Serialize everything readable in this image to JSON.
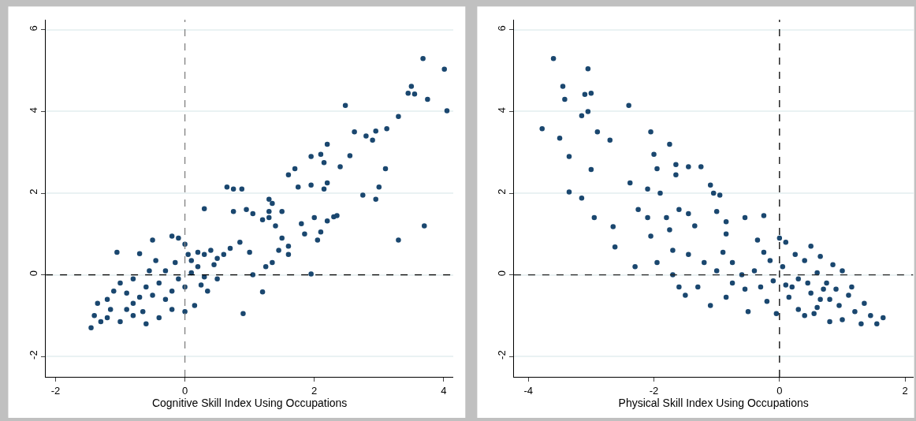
{
  "chart_data": [
    {
      "type": "scatter",
      "xlabel": "Cognitive Skill Index Using Occupations",
      "xlim": [
        -2.15,
        4.15
      ],
      "ylim": [
        -2.5,
        6.25
      ],
      "xticks": [
        -2,
        0,
        2,
        4
      ],
      "yticks": [
        -2,
        0,
        2,
        4,
        6
      ],
      "grid": "y",
      "marker": "circle",
      "ref_lines": [
        {
          "axis": "x",
          "value": 0,
          "line_style": "dashed",
          "color": "#7f7f7f"
        },
        {
          "axis": "y",
          "value": 0,
          "line_style": "dashed",
          "color": "#000000"
        }
      ],
      "series": [
        {
          "color": "#1a476f",
          "x": [
            4.01,
            3.68,
            4.05,
            3.75,
            3.5,
            3.45,
            3.55,
            2.48,
            3.3,
            3.12,
            2.95,
            2.9,
            2.8,
            2.62,
            2.55,
            2.4,
            2.2,
            2.1,
            2.15,
            2.2,
            2.15,
            1.95,
            1.95,
            1.7,
            1.6,
            1.75,
            2.75,
            2.95,
            3.0,
            3.1,
            3.3,
            3.7,
            2.3,
            2.35,
            2.2,
            2.1,
            2.05,
            2.0,
            1.8,
            1.85,
            1.5,
            1.35,
            1.3,
            1.3,
            1.3,
            1.4,
            1.2,
            1.05,
            0.95,
            0.75,
            0.65,
            0.75,
            0.88,
            0.3,
            1.5,
            1.45,
            1.6,
            1.35,
            1.25,
            1.6,
            1.95,
            1.2,
            0.9,
            1.05,
            1.0,
            0.85,
            0.7,
            0.6,
            0.4,
            0.3,
            0.2,
            0.1,
            0.0,
            -0.1,
            -0.2,
            -0.5,
            -1.05,
            -0.7,
            -0.45,
            0.5,
            0.35,
            0.15,
            0.0,
            -0.2,
            -0.4,
            -0.6,
            -0.8,
            -1.0,
            -1.2,
            -1.4,
            -1.45,
            -1.3,
            -1.35,
            -1.2,
            -1.1,
            -1.0,
            -0.9,
            -0.8,
            -0.7,
            -0.6,
            -0.5,
            -0.4,
            -0.3,
            -0.2,
            -0.1,
            0.0,
            0.1,
            0.2,
            0.3,
            0.45,
            0.5,
            -0.3,
            -0.55,
            -0.8,
            -0.15,
            0.05,
            -1.15,
            -0.9,
            -0.65,
            0.25
          ],
          "values": [
            5.04,
            5.3,
            4.02,
            4.3,
            4.62,
            4.45,
            4.43,
            4.15,
            3.88,
            3.58,
            3.52,
            3.3,
            3.4,
            3.5,
            2.92,
            2.65,
            3.2,
            2.95,
            2.75,
            2.25,
            2.1,
            2.2,
            2.9,
            2.6,
            2.45,
            2.15,
            1.95,
            1.85,
            2.15,
            2.6,
            0.85,
            1.2,
            1.42,
            1.45,
            1.32,
            1.05,
            0.85,
            1.4,
            1.25,
            1.0,
            1.55,
            1.75,
            1.85,
            1.55,
            1.4,
            1.2,
            1.35,
            1.5,
            1.6,
            1.55,
            2.15,
            2.1,
            2.1,
            1.62,
            0.9,
            0.6,
            0.7,
            0.3,
            0.2,
            0.5,
            0.02,
            -0.42,
            -0.95,
            0.0,
            0.55,
            0.8,
            0.65,
            0.5,
            0.6,
            0.5,
            0.55,
            0.35,
            0.75,
            0.9,
            0.95,
            0.85,
            0.55,
            0.52,
            0.35,
            -0.1,
            -0.4,
            -0.75,
            -0.9,
            -0.85,
            -1.05,
            -1.2,
            -1.0,
            -1.15,
            -1.05,
            -1.0,
            -1.3,
            -1.15,
            -0.7,
            -0.6,
            -0.4,
            -0.2,
            -0.45,
            -0.7,
            -0.55,
            -0.3,
            -0.5,
            -0.2,
            -0.6,
            -0.4,
            -0.1,
            -0.3,
            0.05,
            0.2,
            -0.05,
            0.25,
            0.4,
            0.1,
            0.1,
            -0.1,
            0.3,
            0.5,
            -0.85,
            -0.85,
            -0.9,
            -0.25
          ]
        }
      ]
    },
    {
      "type": "scatter",
      "xlabel": "Physical Skill Index Using Occupations",
      "xlim": [
        -4.23,
        2.13
      ],
      "ylim": [
        -2.5,
        6.25
      ],
      "xticks": [
        -4,
        -2,
        0,
        2
      ],
      "yticks": [
        -2,
        0,
        2,
        4,
        6
      ],
      "grid": "y",
      "marker": "circle",
      "ref_lines": [
        {
          "axis": "x",
          "value": 0,
          "line_style": "dashed",
          "color": "#000000"
        },
        {
          "axis": "y",
          "value": 0,
          "line_style": "dashed",
          "color": "#262626"
        }
      ],
      "series": [
        {
          "color": "#1a476f",
          "x": [
            -3.6,
            -3.05,
            -3.45,
            -3.1,
            -3.0,
            -3.42,
            -3.05,
            -3.15,
            -2.4,
            -3.78,
            -3.5,
            -2.9,
            -2.7,
            -3.35,
            -3.0,
            -3.35,
            -3.15,
            -2.95,
            -2.65,
            -2.62,
            -2.38,
            -2.05,
            -1.75,
            -2.0,
            -1.95,
            -1.65,
            -1.65,
            -1.45,
            -1.25,
            -2.1,
            -1.9,
            -2.25,
            -2.1,
            -2.05,
            -1.8,
            -1.75,
            -1.6,
            -1.45,
            -1.35,
            -1.1,
            -1.05,
            -0.95,
            -1.0,
            -0.85,
            -0.85,
            -0.55,
            -0.25,
            -2.3,
            -1.95,
            -1.7,
            -1.5,
            -1.1,
            -1.6,
            -1.3,
            -1.7,
            -1.45,
            -1.2,
            -1.0,
            -0.9,
            -0.75,
            -0.6,
            -0.55,
            -0.85,
            -0.5,
            -0.35,
            -0.25,
            -0.15,
            0.0,
            0.1,
            0.25,
            0.4,
            0.5,
            0.65,
            0.85,
            1.0,
            0.6,
            0.3,
            0.1,
            -0.1,
            -0.3,
            -0.2,
            -0.05,
            0.15,
            0.3,
            0.5,
            0.7,
            0.8,
            0.95,
            1.1,
            1.2,
            1.35,
            1.45,
            1.55,
            1.65,
            1.3,
            1.0,
            0.8,
            0.55,
            0.4,
            0.2,
            0.45,
            0.65,
            0.9,
            1.15,
            0.75,
            0.05,
            -0.4,
            -0.75,
            0.6
          ],
          "values": [
            5.3,
            5.05,
            4.62,
            4.42,
            4.45,
            4.3,
            4.0,
            3.9,
            4.15,
            3.58,
            3.35,
            3.5,
            3.3,
            2.9,
            2.58,
            2.03,
            1.88,
            1.4,
            1.18,
            0.68,
            2.25,
            3.5,
            3.2,
            2.95,
            2.6,
            2.7,
            2.45,
            2.65,
            2.65,
            2.1,
            2.0,
            1.6,
            1.4,
            0.95,
            1.4,
            1.1,
            1.6,
            1.5,
            1.2,
            2.2,
            2.0,
            1.95,
            1.55,
            1.3,
            1.0,
            1.4,
            1.45,
            0.2,
            0.3,
            0.0,
            -0.5,
            -0.75,
            -0.3,
            -0.3,
            0.6,
            0.5,
            0.3,
            0.1,
            0.55,
            0.3,
            0.0,
            -0.35,
            -0.55,
            -0.9,
            0.85,
            0.55,
            0.35,
            0.9,
            0.8,
            0.5,
            0.35,
            0.7,
            0.45,
            0.25,
            0.1,
            0.05,
            -0.1,
            -0.25,
            -0.15,
            -0.3,
            -0.65,
            -0.95,
            -0.55,
            -0.85,
            -0.45,
            -0.35,
            -0.6,
            -0.75,
            -0.5,
            -0.9,
            -0.7,
            -1.0,
            -1.2,
            -1.05,
            -1.2,
            -1.1,
            -1.15,
            -0.95,
            -1.0,
            -0.3,
            -0.2,
            -0.6,
            -0.35,
            -0.3,
            -0.2,
            0.2,
            0.1,
            -0.2,
            -0.8
          ]
        }
      ]
    }
  ]
}
